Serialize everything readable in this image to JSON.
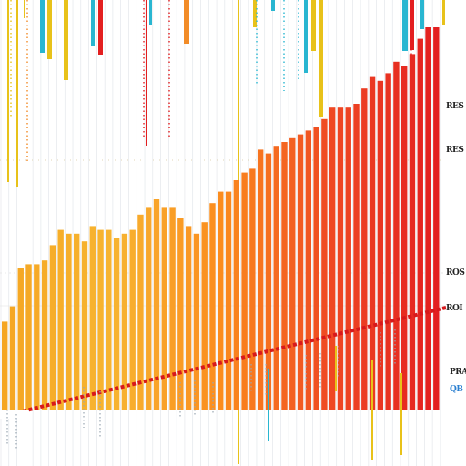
{
  "chart_data": {
    "type": "bar",
    "title": "",
    "xlabel": "",
    "ylabel": "",
    "grid": true,
    "legend": "none",
    "ylim": [
      0,
      100
    ],
    "values": [
      23,
      27,
      37,
      38,
      38,
      39,
      43,
      47,
      46,
      46,
      44,
      48,
      47,
      47,
      45,
      46,
      47,
      51,
      53,
      55,
      53,
      53,
      50,
      48,
      46,
      49,
      54,
      57,
      57,
      60,
      62,
      63,
      68,
      67,
      69,
      70,
      71,
      72,
      73,
      74,
      76,
      79,
      79,
      79,
      80,
      84,
      87,
      86,
      88,
      91,
      90,
      93,
      97,
      100,
      100
    ],
    "gradient_colors": [
      "#f5a623",
      "#f7b531",
      "#fb8c1e",
      "#ef4a23",
      "#e31f20"
    ],
    "diagonal_line_color": "#d7191c",
    "spike_colors": [
      "#e8c21a",
      "#29b6d1",
      "#f28c28",
      "#e31f20"
    ]
  },
  "side_labels": [
    {
      "text": "RES"
    },
    {
      "text": "RES"
    },
    {
      "text": "ROS"
    },
    {
      "text": "ROI"
    },
    {
      "text": "PRA"
    },
    {
      "text": "QB"
    }
  ]
}
